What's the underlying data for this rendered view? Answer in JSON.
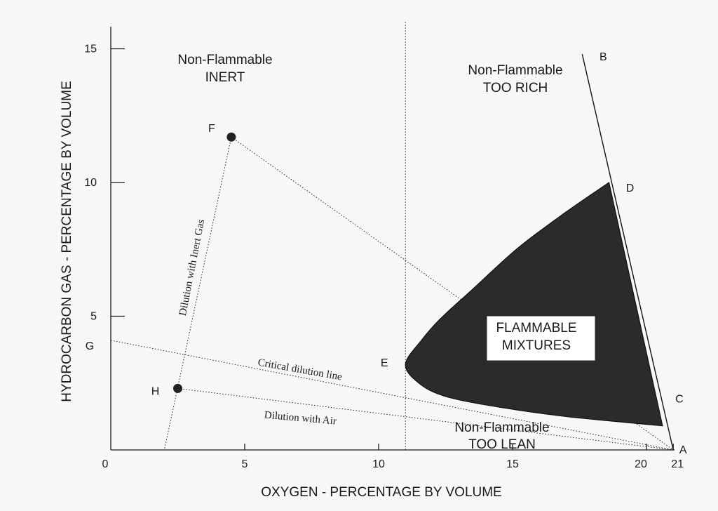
{
  "chart_data": {
    "type": "diagram",
    "title": "",
    "xlabel": "OXYGEN - PERCENTAGE BY VOLUME",
    "ylabel": "HYDROCARBON GAS - PERCENTAGE BY VOLUME",
    "xlim": [
      0,
      21
    ],
    "ylim": [
      0,
      16
    ],
    "x_ticks": [
      {
        "value": 0,
        "label": "0"
      },
      {
        "value": 5,
        "label": "5"
      },
      {
        "value": 10,
        "label": "10"
      },
      {
        "value": 15,
        "label": "15"
      },
      {
        "value": 20,
        "label": "20"
      },
      {
        "value": 21,
        "label": "21"
      }
    ],
    "y_ticks": [
      {
        "value": 5,
        "label": "5"
      },
      {
        "value": 10,
        "label": "10"
      },
      {
        "value": 15,
        "label": "15"
      }
    ],
    "points": [
      {
        "label": "A",
        "x": 21.0,
        "y": 0.0,
        "marker": false
      },
      {
        "label": "B",
        "x": 17.6,
        "y": 14.8,
        "marker": false
      },
      {
        "label": "C",
        "x": 20.6,
        "y": 0.9,
        "marker": false
      },
      {
        "label": "D",
        "x": 18.6,
        "y": 10.0,
        "marker": false
      },
      {
        "label": "E",
        "x": 11.0,
        "y": 3.2,
        "marker": false
      },
      {
        "label": "F",
        "x": 4.5,
        "y": 11.7,
        "marker": true
      },
      {
        "label": "G",
        "x": 0.0,
        "y": 4.1,
        "marker": false
      },
      {
        "label": "H",
        "x": 2.5,
        "y": 2.3,
        "marker": true
      }
    ],
    "flammable_envelope": {
      "upper_boundary": [
        {
          "x": 18.6,
          "y": 10.0
        },
        {
          "x": 17.0,
          "y": 8.9
        },
        {
          "x": 15.2,
          "y": 7.55
        },
        {
          "x": 13.5,
          "y": 6.0
        },
        {
          "x": 12.3,
          "y": 4.9
        },
        {
          "x": 11.6,
          "y": 4.1
        },
        {
          "x": 11.0,
          "y": 3.2
        }
      ],
      "lower_boundary": [
        {
          "x": 11.0,
          "y": 3.2
        },
        {
          "x": 11.5,
          "y": 2.5
        },
        {
          "x": 12.5,
          "y": 2.0
        },
        {
          "x": 14.5,
          "y": 1.6
        },
        {
          "x": 17.0,
          "y": 1.25
        },
        {
          "x": 20.6,
          "y": 0.9
        }
      ],
      "fill": "#2b2b2b"
    },
    "lines": [
      {
        "name": "air-line",
        "style": "solid",
        "from": {
          "x": 17.6,
          "y": 14.8
        },
        "to": {
          "x": 21.0,
          "y": 0.0
        }
      },
      {
        "name": "vertical-oxygen-limit",
        "style": "dotted",
        "from": {
          "x": 11.0,
          "y": 16.0
        },
        "to": {
          "x": 11.0,
          "y": 0.0
        }
      },
      {
        "name": "dilution-with-inert-gas",
        "style": "dotted",
        "from": {
          "x": 4.5,
          "y": 11.7
        },
        "to": {
          "x": 2.0,
          "y": 0.0
        }
      },
      {
        "name": "f-to-a",
        "style": "dotted",
        "from": {
          "x": 4.5,
          "y": 11.7
        },
        "to": {
          "x": 21.0,
          "y": 0.0
        }
      },
      {
        "name": "critical-dilution-line",
        "style": "dotted",
        "from": {
          "x": 0.0,
          "y": 4.1
        },
        "to": {
          "x": 21.0,
          "y": 0.0
        }
      },
      {
        "name": "dilution-with-air",
        "style": "dotted",
        "from": {
          "x": 2.5,
          "y": 2.3
        },
        "to": {
          "x": 21.0,
          "y": 0.0
        }
      }
    ],
    "region_labels": {
      "inert_line1": "Non-Flammable",
      "inert_line2": "INERT",
      "rich_line1": "Non-Flammable",
      "rich_line2": "TOO RICH",
      "lean_line1": "Non-Flammable",
      "lean_line2": "TOO LEAN",
      "flammable_line1": "FLAMMABLE",
      "flammable_line2": "MIXTURES"
    },
    "line_labels": {
      "inert": "Dilution with Inert Gas",
      "critical": "Critical dilution line",
      "air": "Dilution with Air"
    },
    "grid": false,
    "legend": "none"
  }
}
